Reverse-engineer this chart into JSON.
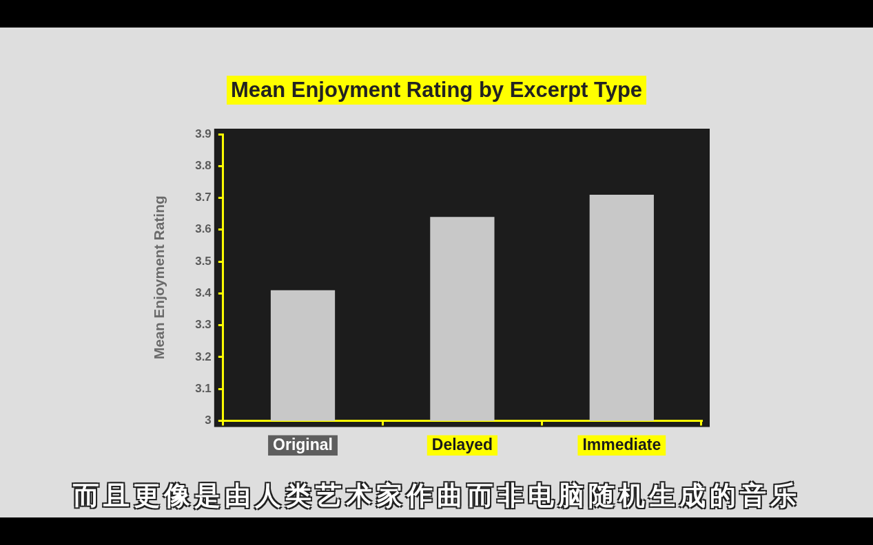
{
  "chart_data": {
    "type": "bar",
    "title": "Mean Enjoyment Rating by Excerpt Type",
    "ylabel": "Mean Enjoyment Rating",
    "categories": [
      "Original",
      "Delayed",
      "Immediate"
    ],
    "values": [
      3.41,
      3.64,
      3.71
    ],
    "color": "#c8c8c8",
    "ylim": [
      3,
      3.9
    ],
    "yticks": [
      3,
      3.1,
      3.2,
      3.3,
      3.4,
      3.5,
      3.6,
      3.7,
      3.8,
      3.9
    ],
    "annotations": [
      "而且更像是由人类艺术家作曲而非电脑随机生成的音乐"
    ]
  }
}
